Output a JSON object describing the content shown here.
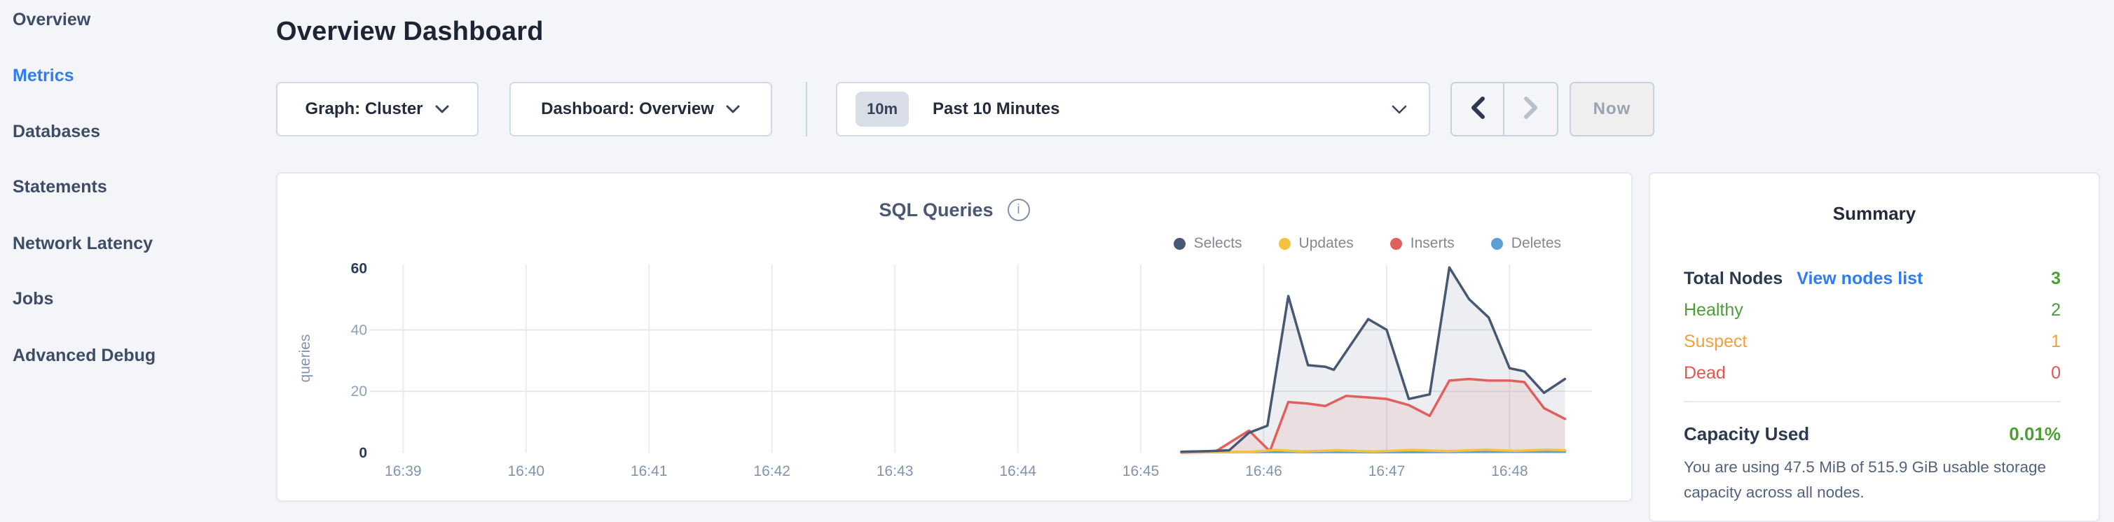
{
  "colors": {
    "accent": "#2e7cf6",
    "link": "#2e7cf6",
    "sidebar_text": "#3f4c66",
    "enabled_arrow": "#2d3850",
    "disabled_arrow": "#b9c0cd"
  },
  "sidebar": {
    "items": [
      {
        "label": "Overview",
        "active": false
      },
      {
        "label": "Metrics",
        "active": true
      },
      {
        "label": "Databases",
        "active": false
      },
      {
        "label": "Statements",
        "active": false
      },
      {
        "label": "Network Latency",
        "active": false
      },
      {
        "label": "Jobs",
        "active": false
      },
      {
        "label": "Advanced Debug",
        "active": false
      }
    ]
  },
  "header": {
    "title": "Overview Dashboard"
  },
  "controls": {
    "graph_dropdown": "Graph: Cluster",
    "dashboard_dropdown": "Dashboard: Overview",
    "time_badge": "10m",
    "time_label": "Past 10 Minutes",
    "now_label": "Now"
  },
  "chart": {
    "title": "SQL Queries",
    "info_icon_glyph": "i"
  },
  "chart_data": {
    "type": "area",
    "title": "SQL Queries",
    "xlabel": "",
    "ylabel": "queries",
    "x_unit": "time of day (16:MM)",
    "xlim": [
      38.81,
      48.67
    ],
    "ylim": [
      0,
      61.5
    ],
    "x_ticks": [
      {
        "v": 39,
        "label": "16:39"
      },
      {
        "v": 40,
        "label": "16:40"
      },
      {
        "v": 41,
        "label": "16:41"
      },
      {
        "v": 42,
        "label": "16:42"
      },
      {
        "v": 43,
        "label": "16:43"
      },
      {
        "v": 44,
        "label": "16:44"
      },
      {
        "v": 45,
        "label": "16:45"
      },
      {
        "v": 46,
        "label": "16:46"
      },
      {
        "v": 47,
        "label": "16:47"
      },
      {
        "v": 48,
        "label": "16:48"
      }
    ],
    "y_ticks": [
      {
        "v": 0,
        "label": "0",
        "emphasis": true
      },
      {
        "v": 20,
        "label": "20",
        "emphasis": false
      },
      {
        "v": 40,
        "label": "40",
        "emphasis": false
      },
      {
        "v": 60,
        "label": "60",
        "emphasis": true
      }
    ],
    "grid_y": [
      20,
      40
    ],
    "grid": true,
    "legend_position": "top-right",
    "series": [
      {
        "name": "Selects",
        "color": "#475872",
        "fill": "rgba(71,88,114,0.10)",
        "points": [
          [
            45.33,
            0.3
          ],
          [
            45.55,
            0.5
          ],
          [
            45.72,
            0.8
          ],
          [
            45.88,
            6.5
          ],
          [
            46.03,
            8.8
          ],
          [
            46.2,
            51
          ],
          [
            46.36,
            28.5
          ],
          [
            46.5,
            28
          ],
          [
            46.57,
            27
          ],
          [
            46.85,
            43.5
          ],
          [
            47.0,
            40
          ],
          [
            47.18,
            17.5
          ],
          [
            47.35,
            19
          ],
          [
            47.51,
            60.3
          ],
          [
            47.67,
            50
          ],
          [
            47.83,
            44
          ],
          [
            48.0,
            27.5
          ],
          [
            48.12,
            26.5
          ],
          [
            48.28,
            19.5
          ],
          [
            48.45,
            24
          ]
        ]
      },
      {
        "name": "Updates",
        "color": "#f3c33f",
        "fill": "rgba(243,195,63,0.12)",
        "points": [
          [
            45.33,
            0.1
          ],
          [
            45.9,
            0.3
          ],
          [
            46.1,
            0.9
          ],
          [
            46.3,
            0.4
          ],
          [
            46.6,
            0.8
          ],
          [
            46.9,
            0.4
          ],
          [
            47.2,
            0.9
          ],
          [
            47.5,
            0.5
          ],
          [
            47.8,
            1.0
          ],
          [
            48.05,
            0.6
          ],
          [
            48.3,
            1.0
          ],
          [
            48.45,
            0.8
          ]
        ]
      },
      {
        "name": "Inserts",
        "color": "#df605d",
        "fill": "rgba(223,96,93,0.11)",
        "points": [
          [
            45.33,
            0
          ],
          [
            45.6,
            0.2
          ],
          [
            45.88,
            7.2
          ],
          [
            46.05,
            0.5
          ],
          [
            46.2,
            16.5
          ],
          [
            46.36,
            16
          ],
          [
            46.5,
            15.2
          ],
          [
            46.67,
            18.5
          ],
          [
            46.85,
            18
          ],
          [
            47.0,
            17.5
          ],
          [
            47.18,
            15.5
          ],
          [
            47.35,
            12
          ],
          [
            47.51,
            23.5
          ],
          [
            47.67,
            24
          ],
          [
            47.83,
            23.5
          ],
          [
            48.0,
            23.5
          ],
          [
            48.12,
            23
          ],
          [
            48.28,
            14.5
          ],
          [
            48.45,
            11
          ]
        ]
      },
      {
        "name": "Deletes",
        "color": "#5c9fd6",
        "fill": "rgba(92,159,214,0.12)",
        "points": [
          [
            45.33,
            0.15
          ],
          [
            46.0,
            0.25
          ],
          [
            47.0,
            0.2
          ],
          [
            48.0,
            0.3
          ],
          [
            48.45,
            0.3
          ]
        ]
      }
    ]
  },
  "summary": {
    "title": "Summary",
    "rows": [
      {
        "label": "Total Nodes",
        "link": "View nodes list",
        "value": "3",
        "label_color": "#2e3950",
        "value_color": "#4c9e35",
        "bold": true
      },
      {
        "label": "Healthy",
        "value": "2",
        "label_color": "#4c9e35",
        "value_color": "#4c9e35"
      },
      {
        "label": "Suspect",
        "value": "1",
        "label_color": "#f0a03c",
        "value_color": "#f0a03c"
      },
      {
        "label": "Dead",
        "value": "0",
        "label_color": "#e2574f",
        "value_color": "#e2574f"
      }
    ],
    "capacity": {
      "label": "Capacity Used",
      "value": "0.01%",
      "value_color": "#4c9e35"
    },
    "capacity_note": "You are using 47.5 MiB of 515.9 GiB usable storage capacity across all nodes."
  }
}
